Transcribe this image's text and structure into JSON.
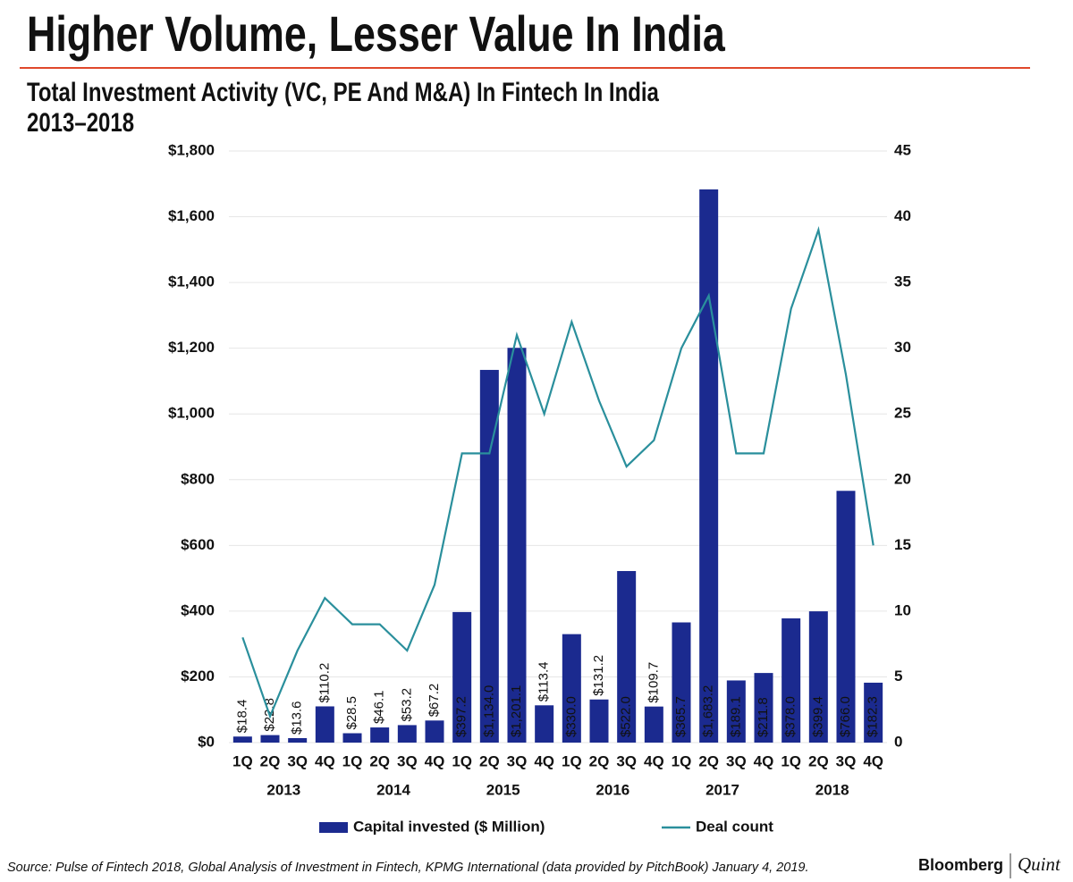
{
  "title": "Higher Volume, Lesser Value In India",
  "subtitle": [
    "Total Investment Activity (VC, PE And M&A) In Fintech In India",
    "2013–2018"
  ],
  "source": "Source: Pulse of Fintech 2018, Global Analysis of Investment in Fintech, KPMG International (data provided by PitchBook) January 4, 2019.",
  "brand": [
    "Bloomberg",
    "Quint"
  ],
  "chart_data": {
    "type": "combo",
    "categories": [
      "1Q",
      "2Q",
      "3Q",
      "4Q",
      "1Q",
      "2Q",
      "3Q",
      "4Q",
      "1Q",
      "2Q",
      "3Q",
      "4Q",
      "1Q",
      "2Q",
      "3Q",
      "4Q",
      "1Q",
      "2Q",
      "3Q",
      "4Q",
      "1Q",
      "2Q",
      "3Q",
      "4Q"
    ],
    "category_groups": [
      "2013",
      "2014",
      "2015",
      "2016",
      "2017",
      "2018"
    ],
    "series": [
      {
        "name": "Capital invested ($ Million)",
        "type": "bar",
        "color": "#1b2a8f",
        "values": [
          18.4,
          22.8,
          13.6,
          110.2,
          28.5,
          46.1,
          53.2,
          67.2,
          397.2,
          1134.0,
          1201.1,
          113.4,
          330.0,
          131.2,
          522.0,
          109.7,
          365.7,
          1683.2,
          189.1,
          211.8,
          378.0,
          399.4,
          766.0,
          182.3
        ],
        "value_labels": [
          "$18.4",
          "$22.8",
          "$13.6",
          "$110.2",
          "$28.5",
          "$46.1",
          "$53.2",
          "$67.2",
          "$397.2",
          "$1,134.0",
          "$1,201.1",
          "$113.4",
          "$330.0",
          "$131.2",
          "$522.0",
          "$109.7",
          "$365.7",
          "$1,683.2",
          "$189.1",
          "$211.8",
          "$378.0",
          "$399.4",
          "$766.0",
          "$182.3"
        ]
      },
      {
        "name": "Deal count",
        "type": "line",
        "axis": "y2",
        "color": "#2a8f9c",
        "values": [
          8,
          2,
          7,
          11,
          9,
          9,
          7,
          12,
          22,
          22,
          31,
          25,
          32,
          26,
          21,
          23,
          30,
          34,
          22,
          22,
          33,
          39,
          28,
          15
        ]
      }
    ],
    "ylim": [
      0,
      1800
    ],
    "yticks": [
      {
        "value": 0,
        "label": "$0"
      },
      {
        "value": 200,
        "label": "$200"
      },
      {
        "value": 400,
        "label": "$400"
      },
      {
        "value": 600,
        "label": "$600"
      },
      {
        "value": 800,
        "label": "$800"
      },
      {
        "value": 1000,
        "label": "$1,000"
      },
      {
        "value": 1200,
        "label": "$1,200"
      },
      {
        "value": 1400,
        "label": "$1,400"
      },
      {
        "value": 1600,
        "label": "$1,600"
      },
      {
        "value": 1800,
        "label": "$1,800"
      }
    ],
    "y2lim": [
      0,
      45
    ],
    "y2ticks": [
      0,
      5,
      10,
      15,
      20,
      25,
      30,
      35,
      40,
      45
    ],
    "grid": true
  }
}
